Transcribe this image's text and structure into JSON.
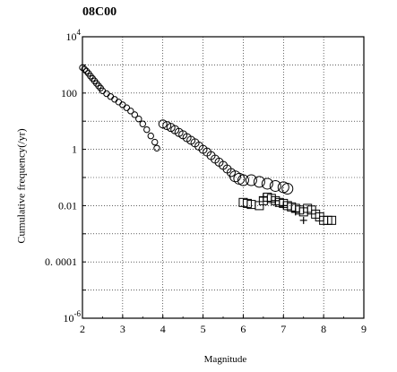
{
  "chart_data": {
    "type": "scatter",
    "title": "08C00",
    "xlabel": "Magnitude",
    "ylabel": "Cumulative frequency(/yr)",
    "xlim": [
      2,
      9
    ],
    "ylim_log10": [
      -6,
      4
    ],
    "yscale": "log",
    "grid": true,
    "x_ticks": [
      "2",
      "3",
      "4",
      "5",
      "6",
      "7",
      "8",
      "9"
    ],
    "y_ticks": [
      {
        "label": "10",
        "sup": "4",
        "log": 4
      },
      {
        "label": "100",
        "sup": "",
        "log": 2
      },
      {
        "label": "1",
        "sup": "",
        "log": 0
      },
      {
        "label": "0.01",
        "sup": "",
        "log": -2
      },
      {
        "label": "0. 0001",
        "sup": "",
        "log": -4
      },
      {
        "label": "10",
        "sup": "-6",
        "log": -6
      }
    ],
    "series": [
      {
        "marker": "circle",
        "points": [
          [
            2.0,
            800
          ],
          [
            2.05,
            700
          ],
          [
            2.1,
            600
          ],
          [
            2.15,
            500
          ],
          [
            2.2,
            400
          ],
          [
            2.25,
            330
          ],
          [
            2.3,
            270
          ],
          [
            2.35,
            220
          ],
          [
            2.4,
            180
          ],
          [
            2.45,
            150
          ],
          [
            2.5,
            120
          ],
          [
            2.6,
            95
          ],
          [
            2.7,
            75
          ],
          [
            2.8,
            60
          ],
          [
            2.9,
            48
          ],
          [
            3.0,
            38
          ],
          [
            3.1,
            30
          ],
          [
            3.2,
            23
          ],
          [
            3.3,
            17
          ],
          [
            3.4,
            12
          ],
          [
            3.5,
            8
          ],
          [
            3.6,
            5
          ],
          [
            3.7,
            3
          ],
          [
            3.8,
            1.8
          ],
          [
            3.85,
            1.1
          ],
          [
            4.0,
            8
          ],
          [
            4.1,
            7
          ],
          [
            4.2,
            6
          ],
          [
            4.3,
            5
          ],
          [
            4.4,
            4
          ],
          [
            4.5,
            3.3
          ],
          [
            4.6,
            2.6
          ],
          [
            4.7,
            2.1
          ],
          [
            4.8,
            1.7
          ],
          [
            4.9,
            1.3
          ],
          [
            5.0,
            1.0
          ],
          [
            5.1,
            0.8
          ],
          [
            5.2,
            0.6
          ],
          [
            5.3,
            0.45
          ],
          [
            5.4,
            0.35
          ],
          [
            5.5,
            0.27
          ],
          [
            5.6,
            0.2
          ],
          [
            5.7,
            0.15
          ],
          [
            5.8,
            0.11
          ],
          [
            5.9,
            0.09
          ],
          [
            6.0,
            0.08
          ],
          [
            6.2,
            0.08
          ],
          [
            6.4,
            0.07
          ],
          [
            6.6,
            0.06
          ],
          [
            6.8,
            0.05
          ],
          [
            7.0,
            0.045
          ],
          [
            7.1,
            0.04
          ]
        ]
      },
      {
        "marker": "square",
        "points": [
          [
            6.0,
            0.013
          ],
          [
            6.1,
            0.012
          ],
          [
            6.2,
            0.011
          ],
          [
            6.4,
            0.01
          ],
          [
            6.5,
            0.015
          ],
          [
            6.6,
            0.02
          ],
          [
            6.7,
            0.018
          ],
          [
            6.8,
            0.015
          ],
          [
            6.9,
            0.013
          ],
          [
            7.0,
            0.012
          ],
          [
            7.1,
            0.01
          ],
          [
            7.2,
            0.009
          ],
          [
            7.3,
            0.008
          ],
          [
            7.4,
            0.007
          ],
          [
            7.5,
            0.006
          ],
          [
            7.6,
            0.008
          ],
          [
            7.7,
            0.007
          ],
          [
            7.8,
            0.005
          ],
          [
            7.9,
            0.004
          ],
          [
            8.0,
            0.003
          ],
          [
            8.1,
            0.003
          ],
          [
            8.2,
            0.003
          ]
        ]
      },
      {
        "marker": "plus",
        "points": [
          [
            6.5,
            0.02
          ],
          [
            6.8,
            0.015
          ],
          [
            7.0,
            0.01
          ],
          [
            7.3,
            0.006
          ],
          [
            7.5,
            0.003
          ]
        ]
      }
    ]
  }
}
